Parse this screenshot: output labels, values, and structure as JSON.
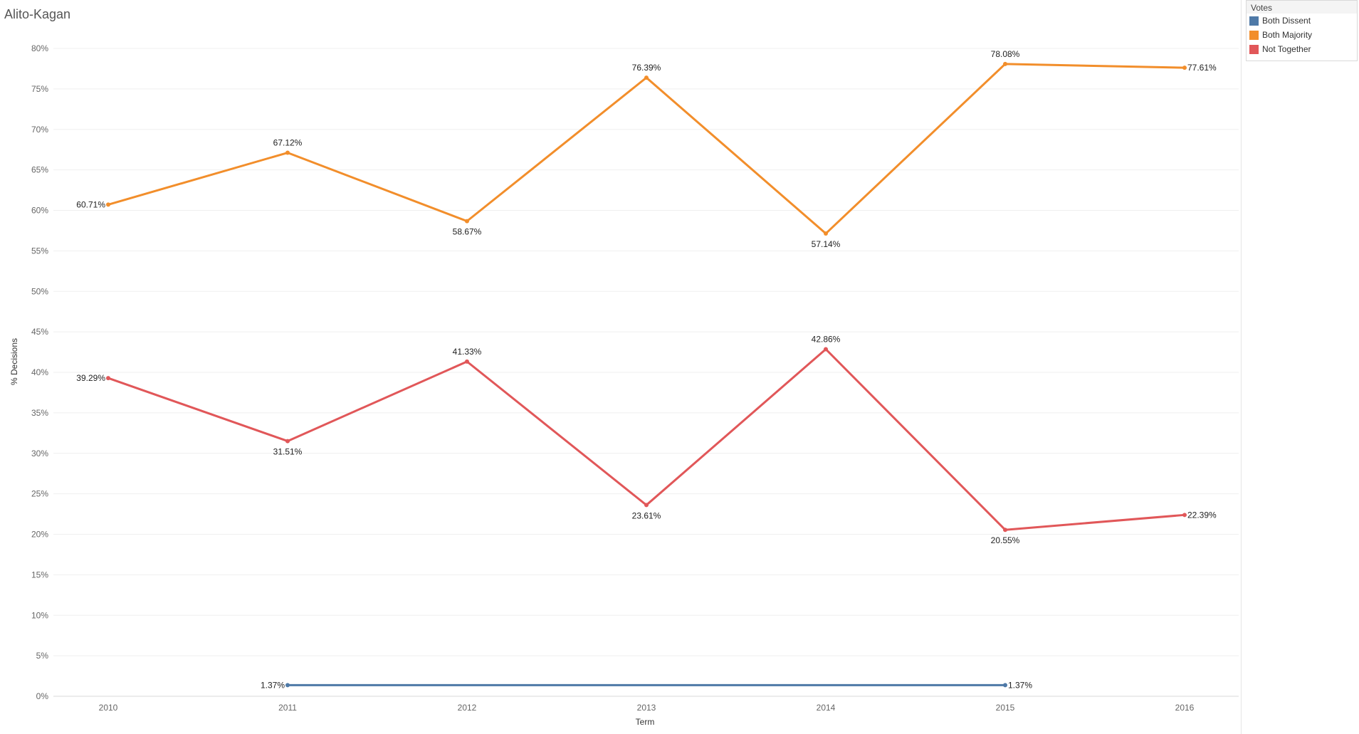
{
  "title": "Alito-Kagan",
  "legend": {
    "title": "Votes",
    "items": [
      {
        "label": "Both Dissent",
        "color": "#4e79a7"
      },
      {
        "label": "Both Majority",
        "color": "#f28e2b"
      },
      {
        "label": "Not Together",
        "color": "#e15759"
      }
    ]
  },
  "chart_data": {
    "type": "line",
    "title": "Alito-Kagan",
    "xlabel": "Term",
    "ylabel": "% Decisions",
    "x": [
      "2010",
      "2011",
      "2012",
      "2013",
      "2014",
      "2015",
      "2016"
    ],
    "ylim": [
      0,
      80
    ],
    "yticks": [
      0,
      5,
      10,
      15,
      20,
      25,
      30,
      35,
      40,
      45,
      50,
      55,
      60,
      65,
      70,
      75,
      80
    ],
    "ytick_labels": [
      "0%",
      "5%",
      "10%",
      "15%",
      "20%",
      "25%",
      "30%",
      "35%",
      "40%",
      "45%",
      "50%",
      "55%",
      "60%",
      "65%",
      "70%",
      "75%",
      "80%"
    ],
    "grid": true,
    "legend_position": "top-right",
    "series": [
      {
        "name": "Both Dissent",
        "color": "#4e79a7",
        "values": [
          null,
          1.37,
          null,
          null,
          null,
          1.37,
          null
        ],
        "labels": [
          null,
          "1.37%",
          null,
          null,
          null,
          "1.37%",
          null
        ]
      },
      {
        "name": "Both Majority",
        "color": "#f28e2b",
        "values": [
          60.71,
          67.12,
          58.67,
          76.39,
          57.14,
          78.08,
          77.61
        ],
        "labels": [
          "60.71%",
          "67.12%",
          "58.67%",
          "76.39%",
          "57.14%",
          "78.08%",
          "77.61%"
        ]
      },
      {
        "name": "Not Together",
        "color": "#e15759",
        "values": [
          39.29,
          31.51,
          41.33,
          23.61,
          42.86,
          20.55,
          22.39
        ],
        "labels": [
          "39.29%",
          "31.51%",
          "41.33%",
          "23.61%",
          "42.86%",
          "20.55%",
          "22.39%"
        ]
      }
    ]
  }
}
